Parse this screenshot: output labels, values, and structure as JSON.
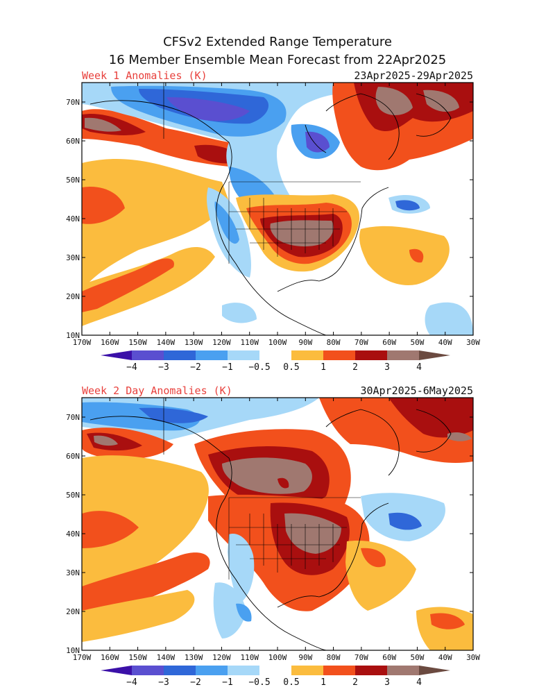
{
  "title_line1": "CFSv2 Extended Range Temperature",
  "title_line2": "16 Member Ensemble Mean Forecast from 22Apr2025",
  "colors": {
    "label_red": "#e8403c",
    "bins": [
      "#3b10a8",
      "#5a4fd0",
      "#2f67d8",
      "#4aa0f0",
      "#a6d8f8",
      "#ffffff",
      "#fbbc3e",
      "#f2501c",
      "#a90f0f",
      "#a07870",
      "#6b4a40"
    ]
  },
  "colorbar": {
    "labels": [
      "−4",
      "−3",
      "−2",
      "−1",
      "−0.5",
      "0.5",
      "1",
      "2",
      "3",
      "4"
    ]
  },
  "axes": {
    "x_ticks": [
      "170W",
      "160W",
      "150W",
      "140W",
      "130W",
      "120W",
      "110W",
      "100W",
      "90W",
      "80W",
      "70W",
      "60W",
      "50W",
      "40W",
      "30W"
    ],
    "y_ticks": [
      "10N",
      "20N",
      "30N",
      "40N",
      "50N",
      "60N",
      "70N"
    ]
  },
  "panels": [
    {
      "label": "Week 1 Anomalies (K)",
      "date_range": "23Apr2025-29Apr2025"
    },
    {
      "label": "Week 2 Day Anomalies (K)",
      "date_range": "30Apr2025-6May2025"
    }
  ]
}
